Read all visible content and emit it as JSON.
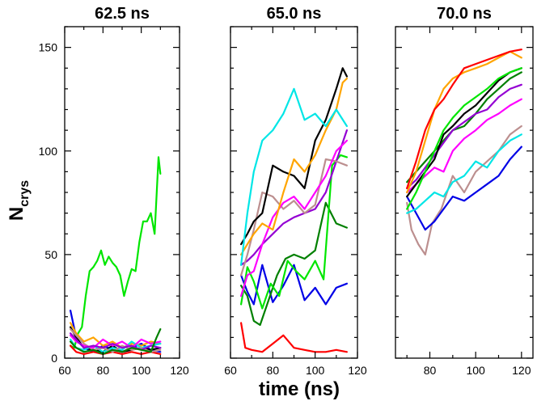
{
  "figure": {
    "ylabel_main": "N",
    "ylabel_sub": "crys",
    "xlabel": "time (ns)"
  },
  "chart_data": [
    {
      "type": "line",
      "title": "62.5 ns",
      "xlim": [
        60,
        120
      ],
      "ylim": [
        0,
        160
      ],
      "xticks": [
        "60",
        "80",
        "100",
        "120"
      ],
      "yticks": [
        "0",
        "50",
        "100",
        "150"
      ],
      "series": [
        {
          "name": "green",
          "color": "#00e600",
          "x": [
            63,
            65,
            67,
            69,
            71,
            73,
            75,
            77,
            79,
            81,
            83,
            85,
            87,
            89,
            91,
            93,
            95,
            97,
            99,
            101,
            103,
            105,
            107,
            109,
            110
          ],
          "y": [
            6,
            5,
            12,
            15,
            30,
            42,
            44,
            47,
            52,
            45,
            49,
            46,
            44,
            40,
            30,
            37,
            43,
            42,
            56,
            66,
            66,
            70,
            60,
            97,
            89
          ]
        },
        {
          "name": "blue",
          "color": "#0000e6",
          "x": [
            63,
            66,
            70,
            75,
            80,
            85,
            90,
            95,
            100,
            105,
            110
          ],
          "y": [
            23,
            10,
            5,
            3,
            6,
            4,
            3,
            5,
            7,
            4,
            3
          ]
        },
        {
          "name": "red",
          "color": "#ff0000",
          "x": [
            63,
            66,
            70,
            75,
            80,
            85,
            90,
            95,
            100,
            105,
            110
          ],
          "y": [
            6,
            3,
            2,
            3,
            2,
            3,
            2,
            3,
            2,
            3,
            2
          ]
        },
        {
          "name": "orange",
          "color": "#ffa500",
          "x": [
            63,
            66,
            70,
            75,
            80,
            85,
            90,
            95,
            100,
            105,
            110
          ],
          "y": [
            17,
            12,
            8,
            10,
            6,
            8,
            5,
            7,
            6,
            8,
            7
          ]
        },
        {
          "name": "black",
          "color": "#000000",
          "x": [
            63,
            66,
            70,
            75,
            80,
            85,
            90,
            95,
            100,
            105,
            110
          ],
          "y": [
            15,
            10,
            5,
            4,
            3,
            6,
            3,
            4,
            5,
            4,
            5
          ]
        },
        {
          "name": "cyan",
          "color": "#00e6e6",
          "x": [
            63,
            66,
            70,
            75,
            80,
            85,
            90,
            95,
            100,
            105,
            110
          ],
          "y": [
            9,
            5,
            4,
            6,
            3,
            5,
            4,
            8,
            5,
            6,
            7
          ]
        },
        {
          "name": "tan",
          "color": "#bc8f8f",
          "x": [
            63,
            66,
            70,
            75,
            80,
            85,
            90,
            95,
            100,
            105,
            110
          ],
          "y": [
            14,
            11,
            7,
            4,
            5,
            3,
            6,
            4,
            5,
            3,
            4
          ]
        },
        {
          "name": "magenta",
          "color": "#ff00ff",
          "x": [
            63,
            66,
            70,
            75,
            80,
            85,
            90,
            95,
            100,
            105,
            110
          ],
          "y": [
            11,
            8,
            6,
            5,
            9,
            6,
            8,
            5,
            9,
            7,
            8
          ]
        },
        {
          "name": "purple",
          "color": "#9400d3",
          "x": [
            63,
            66,
            70,
            75,
            80,
            85,
            90,
            95,
            100,
            105,
            110
          ],
          "y": [
            12,
            9,
            5,
            6,
            5,
            7,
            5,
            6,
            4,
            6,
            5
          ]
        },
        {
          "name": "darkgreen",
          "color": "#008000",
          "x": [
            63,
            66,
            70,
            75,
            80,
            85,
            90,
            95,
            100,
            105,
            108,
            110
          ],
          "y": [
            8,
            5,
            3,
            4,
            2,
            4,
            3,
            5,
            4,
            3,
            10,
            14
          ]
        }
      ]
    },
    {
      "type": "line",
      "title": "65.0 ns",
      "xlim": [
        60,
        120
      ],
      "ylim": [
        0,
        160
      ],
      "xticks": [
        "60",
        "80",
        "100",
        "120"
      ],
      "yticks": [],
      "series": [
        {
          "name": "red",
          "color": "#ff0000",
          "x": [
            65,
            67,
            70,
            75,
            80,
            85,
            90,
            95,
            100,
            105,
            110,
            115
          ],
          "y": [
            17,
            5,
            4,
            3,
            7,
            11,
            5,
            4,
            3,
            3,
            4,
            3
          ]
        },
        {
          "name": "blue",
          "color": "#0000e6",
          "x": [
            65,
            68,
            71,
            75,
            80,
            85,
            90,
            95,
            100,
            105,
            110,
            115
          ],
          "y": [
            40,
            32,
            26,
            45,
            27,
            35,
            45,
            28,
            34,
            26,
            34,
            36
          ]
        },
        {
          "name": "darkgreen",
          "color": "#008000",
          "x": [
            65,
            68,
            71,
            74,
            78,
            82,
            86,
            90,
            95,
            100,
            105,
            110,
            115
          ],
          "y": [
            35,
            30,
            18,
            16,
            28,
            40,
            48,
            50,
            48,
            52,
            75,
            65,
            63
          ]
        },
        {
          "name": "green",
          "color": "#00e600",
          "x": [
            65,
            68,
            71,
            75,
            79,
            83,
            87,
            91,
            95,
            100,
            104,
            108,
            112,
            115
          ],
          "y": [
            26,
            44,
            37,
            24,
            36,
            30,
            47,
            42,
            38,
            47,
            38,
            93,
            98,
            97
          ]
        },
        {
          "name": "purple",
          "color": "#9400d3",
          "x": [
            65,
            68,
            71,
            75,
            80,
            85,
            90,
            95,
            100,
            105,
            110,
            115
          ],
          "y": [
            45,
            47,
            50,
            55,
            60,
            65,
            68,
            70,
            72,
            80,
            95,
            110
          ]
        },
        {
          "name": "tan",
          "color": "#bc8f8f",
          "x": [
            65,
            68,
            71,
            75,
            80,
            85,
            90,
            95,
            100,
            105,
            110,
            115
          ],
          "y": [
            40,
            50,
            62,
            80,
            78,
            72,
            76,
            70,
            74,
            96,
            95,
            93
          ]
        },
        {
          "name": "magenta",
          "color": "#ff00ff",
          "x": [
            65,
            68,
            71,
            75,
            80,
            85,
            90,
            95,
            100,
            105,
            110,
            115
          ],
          "y": [
            30,
            40,
            42,
            55,
            68,
            75,
            78,
            72,
            80,
            88,
            100,
            105
          ]
        },
        {
          "name": "black",
          "color": "#000000",
          "x": [
            65,
            68,
            71,
            75,
            80,
            85,
            90,
            95,
            100,
            105,
            110,
            113,
            115
          ],
          "y": [
            55,
            60,
            66,
            70,
            93,
            90,
            88,
            82,
            105,
            115,
            130,
            140,
            136
          ]
        },
        {
          "name": "orange",
          "color": "#ffa500",
          "x": [
            65,
            68,
            71,
            75,
            80,
            85,
            90,
            95,
            100,
            105,
            110,
            113,
            115
          ],
          "y": [
            50,
            55,
            60,
            65,
            62,
            80,
            96,
            90,
            98,
            110,
            120,
            133,
            135
          ]
        },
        {
          "name": "cyan",
          "color": "#00e6e6",
          "x": [
            65,
            68,
            71,
            75,
            80,
            85,
            90,
            95,
            100,
            105,
            110,
            115
          ],
          "y": [
            45,
            70,
            90,
            105,
            110,
            118,
            130,
            115,
            118,
            112,
            120,
            112
          ]
        }
      ]
    },
    {
      "type": "line",
      "title": "70.0 ns",
      "xlim": [
        65,
        125
      ],
      "ylim": [
        0,
        160
      ],
      "xticks": [
        "80",
        "100",
        "120"
      ],
      "yticks": [],
      "series": [
        {
          "name": "tan",
          "color": "#bc8f8f",
          "x": [
            70,
            72,
            75,
            78,
            81,
            85,
            90,
            95,
            100,
            105,
            110,
            115,
            120
          ],
          "y": [
            75,
            62,
            55,
            50,
            65,
            72,
            88,
            80,
            90,
            95,
            100,
            108,
            112
          ]
        },
        {
          "name": "blue",
          "color": "#0000e6",
          "x": [
            70,
            74,
            78,
            82,
            86,
            90,
            95,
            100,
            105,
            110,
            115,
            120
          ],
          "y": [
            78,
            70,
            62,
            66,
            72,
            78,
            76,
            80,
            84,
            88,
            96,
            102
          ]
        },
        {
          "name": "cyan",
          "color": "#00e6e6",
          "x": [
            70,
            74,
            78,
            82,
            86,
            90,
            95,
            100,
            105,
            110,
            115,
            120
          ],
          "y": [
            70,
            72,
            76,
            80,
            78,
            85,
            88,
            95,
            92,
            100,
            105,
            108
          ]
        },
        {
          "name": "magenta",
          "color": "#ff00ff",
          "x": [
            70,
            74,
            78,
            82,
            86,
            90,
            95,
            100,
            105,
            110,
            115,
            120
          ],
          "y": [
            80,
            84,
            88,
            92,
            90,
            100,
            106,
            110,
            115,
            118,
            122,
            125
          ]
        },
        {
          "name": "darkgreen",
          "color": "#008000",
          "x": [
            70,
            74,
            78,
            82,
            86,
            90,
            95,
            100,
            105,
            110,
            115,
            120
          ],
          "y": [
            85,
            90,
            95,
            100,
            105,
            110,
            112,
            118,
            125,
            130,
            135,
            138
          ]
        },
        {
          "name": "purple",
          "color": "#9400d3",
          "x": [
            70,
            74,
            78,
            82,
            86,
            90,
            95,
            100,
            105,
            110,
            115,
            120
          ],
          "y": [
            82,
            86,
            92,
            98,
            104,
            110,
            114,
            118,
            120,
            126,
            130,
            132
          ]
        },
        {
          "name": "black",
          "color": "#000000",
          "x": [
            70,
            74,
            78,
            82,
            86,
            90,
            95,
            100,
            105,
            110,
            115,
            120
          ],
          "y": [
            78,
            84,
            90,
            96,
            108,
            112,
            118,
            122,
            128,
            134,
            138,
            140
          ]
        },
        {
          "name": "green",
          "color": "#00e600",
          "x": [
            70,
            74,
            78,
            82,
            86,
            90,
            95,
            100,
            105,
            110,
            115,
            120
          ],
          "y": [
            72,
            80,
            90,
            100,
            110,
            116,
            122,
            126,
            130,
            135,
            138,
            140
          ]
        },
        {
          "name": "orange",
          "color": "#ffa500",
          "x": [
            70,
            74,
            78,
            82,
            86,
            90,
            95,
            100,
            105,
            110,
            115,
            120
          ],
          "y": [
            80,
            90,
            105,
            120,
            130,
            135,
            138,
            140,
            142,
            145,
            148,
            145
          ]
        },
        {
          "name": "red",
          "color": "#ff0000",
          "x": [
            70,
            74,
            78,
            82,
            86,
            90,
            95,
            100,
            105,
            110,
            115,
            120
          ],
          "y": [
            82,
            95,
            110,
            120,
            125,
            132,
            140,
            142,
            144,
            146,
            148,
            149
          ]
        }
      ]
    }
  ]
}
